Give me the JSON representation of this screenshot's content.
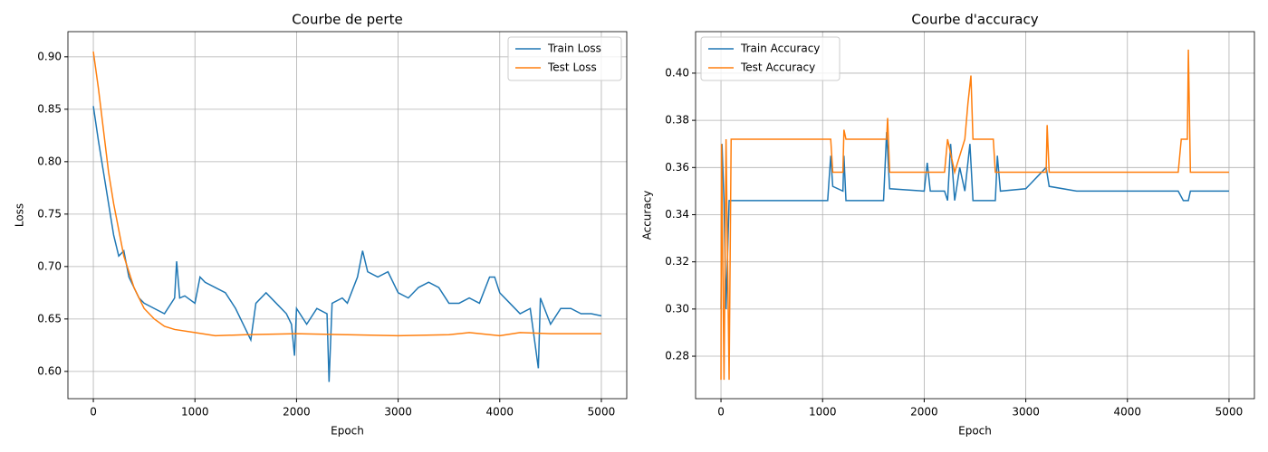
{
  "chart_data": [
    {
      "type": "line",
      "title": "Courbe de perte",
      "xlabel": "Epoch",
      "ylabel": "Loss",
      "xlim": [
        -250,
        5250
      ],
      "ylim": [
        0.574,
        0.924
      ],
      "xticks": [
        0,
        1000,
        2000,
        3000,
        4000,
        5000
      ],
      "yticks": [
        {
          "value": 0.6,
          "label": "0.60"
        },
        0.65,
        {
          "value": 0.7,
          "label": "0.70"
        },
        0.75,
        {
          "value": 0.8,
          "label": "0.80"
        },
        0.85,
        {
          "value": 0.9,
          "label": "0.90"
        }
      ],
      "grid": true,
      "legend": "upper right",
      "series": [
        {
          "name": "Train Loss",
          "color": "#1f77b4",
          "x": [
            0,
            50,
            100,
            150,
            200,
            250,
            300,
            350,
            400,
            450,
            500,
            600,
            700,
            800,
            820,
            850,
            900,
            1000,
            1050,
            1100,
            1200,
            1300,
            1400,
            1500,
            1550,
            1600,
            1700,
            1800,
            1900,
            1950,
            1980,
            2000,
            2100,
            2200,
            2300,
            2320,
            2350,
            2450,
            2500,
            2600,
            2650,
            2700,
            2800,
            2900,
            3000,
            3100,
            3200,
            3300,
            3400,
            3500,
            3600,
            3700,
            3800,
            3900,
            3950,
            4000,
            4100,
            4200,
            4300,
            4380,
            4400,
            4500,
            4600,
            4700,
            4800,
            4900,
            5000
          ],
          "values": [
            0.853,
            0.82,
            0.79,
            0.76,
            0.73,
            0.71,
            0.715,
            0.69,
            0.68,
            0.67,
            0.665,
            0.66,
            0.655,
            0.67,
            0.705,
            0.67,
            0.672,
            0.665,
            0.69,
            0.685,
            0.68,
            0.675,
            0.66,
            0.64,
            0.63,
            0.665,
            0.675,
            0.665,
            0.655,
            0.645,
            0.615,
            0.66,
            0.645,
            0.66,
            0.655,
            0.59,
            0.665,
            0.67,
            0.665,
            0.69,
            0.715,
            0.695,
            0.69,
            0.695,
            0.675,
            0.67,
            0.68,
            0.685,
            0.68,
            0.665,
            0.665,
            0.67,
            0.665,
            0.69,
            0.69,
            0.675,
            0.665,
            0.655,
            0.66,
            0.603,
            0.67,
            0.645,
            0.66,
            0.66,
            0.655,
            0.655,
            0.653
          ]
        },
        {
          "name": "Test Loss",
          "color": "#ff7f0e",
          "x": [
            0,
            50,
            100,
            150,
            200,
            300,
            400,
            500,
            600,
            700,
            800,
            1000,
            1200,
            1500,
            2000,
            2500,
            3000,
            3500,
            3700,
            4000,
            4200,
            4500,
            5000
          ],
          "values": [
            0.905,
            0.87,
            0.83,
            0.79,
            0.76,
            0.71,
            0.68,
            0.66,
            0.65,
            0.643,
            0.64,
            0.637,
            0.634,
            0.635,
            0.636,
            0.635,
            0.634,
            0.635,
            0.637,
            0.634,
            0.637,
            0.636,
            0.636
          ]
        }
      ]
    },
    {
      "type": "line",
      "title": "Courbe d'accuracy",
      "xlabel": "Epoch",
      "ylabel": "Accuracy",
      "xlim": [
        -250,
        5250
      ],
      "ylim": [
        0.262,
        0.4176
      ],
      "xticks": [
        0,
        1000,
        2000,
        3000,
        4000,
        5000
      ],
      "yticks": [
        0.28,
        {
          "value": 0.3,
          "label": "0.30"
        },
        0.32,
        0.34,
        0.36,
        0.38,
        {
          "value": 0.4,
          "label": "0.40"
        }
      ],
      "grid": true,
      "legend": "upper left",
      "series": [
        {
          "name": "Train Accuracy",
          "color": "#1f77b4",
          "x": [
            0,
            10,
            30,
            50,
            80,
            100,
            1050,
            1080,
            1100,
            1200,
            1210,
            1230,
            1600,
            1630,
            1660,
            2000,
            2030,
            2060,
            2200,
            2230,
            2260,
            2300,
            2350,
            2400,
            2450,
            2480,
            2700,
            2720,
            2750,
            3000,
            3200,
            3230,
            3500,
            4500,
            4550,
            4600,
            4620,
            5000
          ],
          "values": [
            0.3,
            0.37,
            0.345,
            0.3,
            0.346,
            0.346,
            0.346,
            0.365,
            0.352,
            0.35,
            0.365,
            0.346,
            0.346,
            0.375,
            0.351,
            0.35,
            0.362,
            0.35,
            0.35,
            0.346,
            0.37,
            0.346,
            0.36,
            0.35,
            0.37,
            0.346,
            0.346,
            0.365,
            0.35,
            0.351,
            0.36,
            0.352,
            0.35,
            0.35,
            0.346,
            0.346,
            0.35,
            0.35
          ]
        },
        {
          "name": "Test Accuracy",
          "color": "#ff7f0e",
          "x": [
            0,
            5,
            30,
            50,
            80,
            100,
            1080,
            1100,
            1200,
            1210,
            1230,
            1630,
            1640,
            1660,
            2200,
            2230,
            2300,
            2400,
            2430,
            2460,
            2480,
            2680,
            2700,
            3200,
            3210,
            3230,
            4500,
            4530,
            4590,
            4600,
            4620,
            5000
          ],
          "values": [
            0.27,
            0.37,
            0.27,
            0.372,
            0.27,
            0.372,
            0.372,
            0.358,
            0.358,
            0.376,
            0.372,
            0.372,
            0.381,
            0.358,
            0.358,
            0.372,
            0.358,
            0.372,
            0.387,
            0.399,
            0.372,
            0.372,
            0.358,
            0.358,
            0.378,
            0.358,
            0.358,
            0.372,
            0.372,
            0.41,
            0.358,
            0.358
          ]
        }
      ]
    }
  ]
}
